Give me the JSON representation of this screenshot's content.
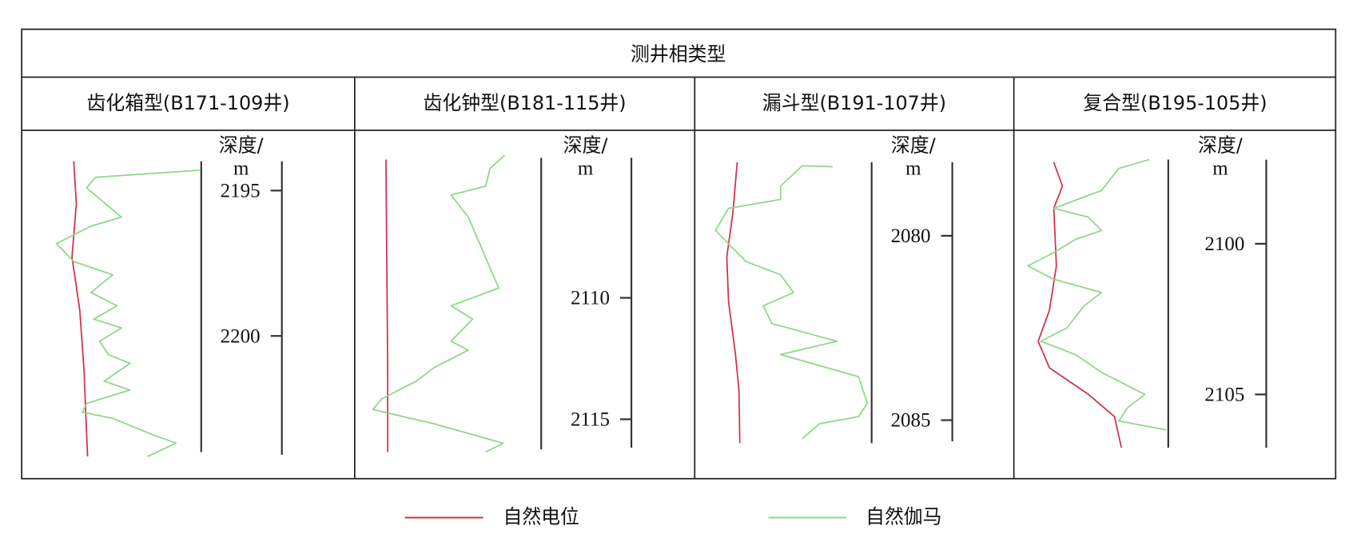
{
  "title": "测井相类型",
  "panels": [
    {
      "title": "齿化箱型(B171-109井)",
      "depth_label": "深度/",
      "depth_unit": "m",
      "ticks": [
        2195,
        2200
      ]
    },
    {
      "title": "齿化钟型(B181-115井)",
      "depth_label": "深度/",
      "depth_unit": "m",
      "ticks": [
        2110,
        2115
      ]
    },
    {
      "title": "漏斗型(B191-107井)",
      "depth_label": "深度/",
      "depth_unit": "m",
      "ticks": [
        2080,
        2085
      ]
    },
    {
      "title": "复合型(B195-105井)",
      "depth_label": "深度/",
      "depth_unit": "m",
      "ticks": [
        2100,
        2105
      ]
    }
  ],
  "legend": [
    {
      "name": "自然电位",
      "color": "#d0304a"
    },
    {
      "name": "自然伽马",
      "color": "#8fd68a"
    }
  ]
}
